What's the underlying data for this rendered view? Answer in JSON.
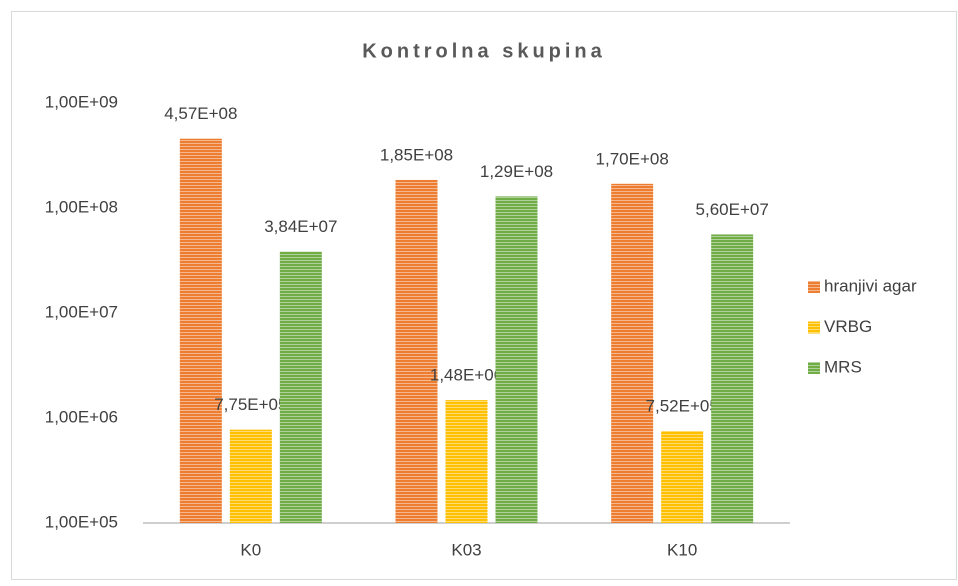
{
  "chart_data": {
    "type": "bar",
    "title": "Kontrolna skupina",
    "categories": [
      "K0",
      "K03",
      "K10"
    ],
    "series": [
      {
        "name": "hranjivi agar",
        "color": "#ed7d31",
        "values": [
          457000000,
          185000000,
          170000000
        ],
        "value_labels": [
          "4,57E+08",
          "1,85E+08",
          "1,70E+08"
        ]
      },
      {
        "name": "VRBG",
        "color": "#ffc000",
        "values": [
          775000,
          1480000,
          752000
        ],
        "value_labels": [
          "7,75E+05",
          "1,48E+06",
          "7,52E+05"
        ]
      },
      {
        "name": "MRS",
        "color": "#70ad47",
        "values": [
          38400000,
          129000000,
          56000000
        ],
        "value_labels": [
          "3,84E+07",
          "1,29E+08",
          "5,60E+07"
        ]
      }
    ],
    "log_scale": true,
    "ylim": [
      100000,
      1000000000
    ],
    "yticks": [
      {
        "value": 100000,
        "label": "1,00E+05"
      },
      {
        "value": 1000000,
        "label": "1,00E+06"
      },
      {
        "value": 10000000,
        "label": "1,00E+07"
      },
      {
        "value": 100000000,
        "label": "1,00E+08"
      },
      {
        "value": 1000000000,
        "label": "1,00E+09"
      }
    ],
    "grid": false,
    "legend": "right"
  }
}
